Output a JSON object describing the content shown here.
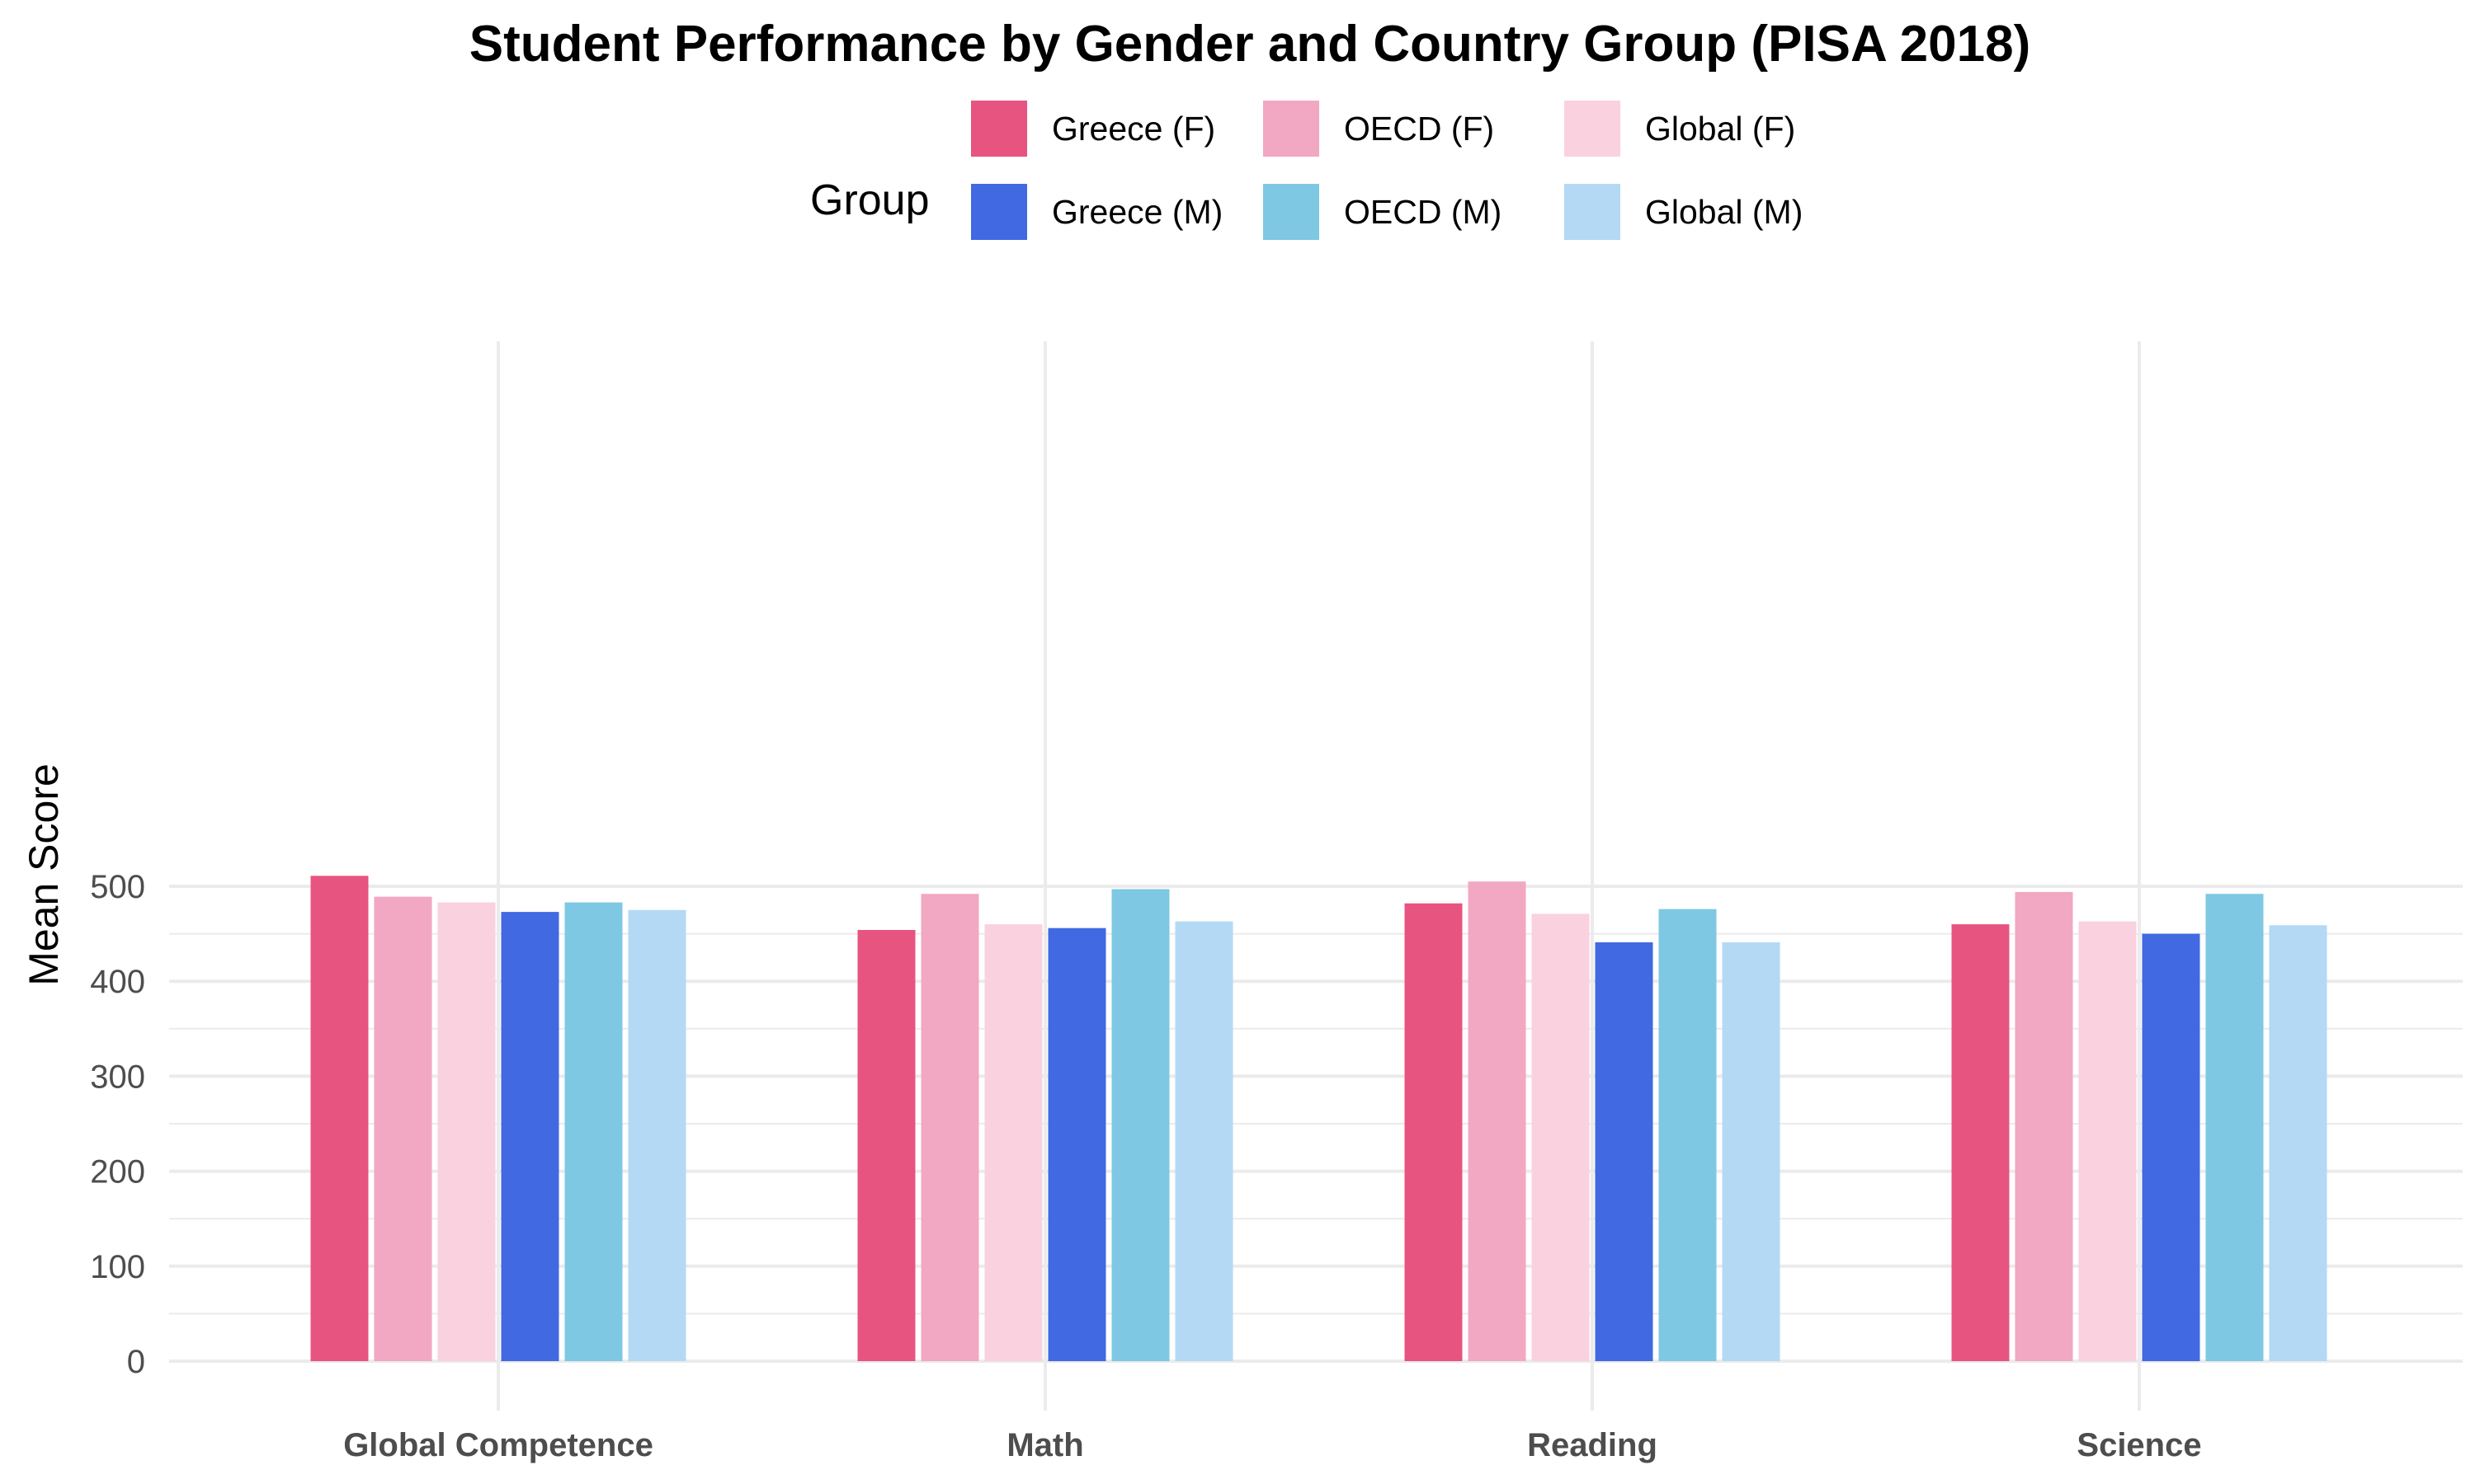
{
  "chart_data": {
    "type": "bar",
    "title": "Student Performance by Gender and Country Group (PISA 2018)",
    "xlabel": "",
    "ylabel": "Mean Score",
    "ylim": [
      -10,
      540
    ],
    "y_ticks": [
      0,
      100,
      200,
      300,
      400,
      500
    ],
    "categories": [
      "Global Competence",
      "Math",
      "Reading",
      "Science"
    ],
    "legend_title": "Group",
    "legend_position": "top",
    "grid": true,
    "series": [
      {
        "name": "Greece (F)",
        "color": "#e75480",
        "values": [
          511,
          454,
          482,
          460
        ]
      },
      {
        "name": "OECD (F)",
        "color": "#f2a7c3",
        "values": [
          489,
          492,
          505,
          494
        ]
      },
      {
        "name": "Global (F)",
        "color": "#fad1df",
        "values": [
          483,
          460,
          471,
          463
        ]
      },
      {
        "name": "Greece (M)",
        "color": "#4169e1",
        "values": [
          473,
          456,
          441,
          450
        ]
      },
      {
        "name": "OECD (M)",
        "color": "#7ec8e3",
        "values": [
          483,
          497,
          476,
          492
        ]
      },
      {
        "name": "Global (M)",
        "color": "#b3d9f5",
        "values": [
          475,
          463,
          441,
          459
        ]
      }
    ]
  }
}
